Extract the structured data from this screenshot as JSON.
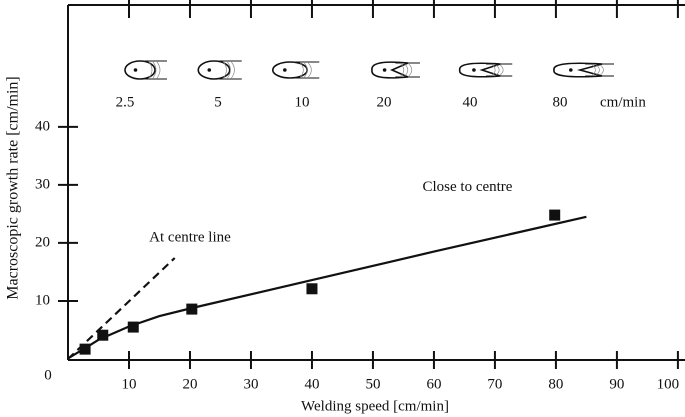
{
  "chart_data": {
    "type": "scatter",
    "xlabel": "Welding speed [cm/min]",
    "ylabel": "Macroscopic growth rate [cm/min]",
    "xlim": [
      0,
      101
    ],
    "ylim": [
      0,
      61
    ],
    "xticks": [
      10,
      20,
      30,
      40,
      50,
      60,
      70,
      80,
      90,
      100
    ],
    "yticks": [
      0,
      10,
      20,
      30,
      40
    ],
    "series": [
      {
        "x": [
          2.8,
          5.7,
          10.7,
          20.3,
          40,
          79.8
        ],
        "values": [
          1.7,
          4.1,
          5.5,
          8.6,
          12.1,
          24.8
        ],
        "color": "#111111",
        "marker": "square"
      },
      {
        "x": [
          0.3,
          3,
          5,
          10,
          15,
          20,
          40,
          60,
          85
        ],
        "values": [
          0.3,
          2,
          3.3,
          5.6,
          7.4,
          8.7,
          13.6,
          18.5,
          24.5
        ],
        "color": "#111111",
        "style": "solid"
      },
      {
        "x": [
          0,
          17.5
        ],
        "values": [
          0,
          17.4
        ],
        "color": "#111111",
        "style": "dashed"
      }
    ],
    "annotations": [
      {
        "text": "At centre line",
        "x": 20,
        "y": 20.8
      },
      {
        "text": "Close to centre",
        "x": 65.5,
        "y": 29.5
      }
    ],
    "top_labels": [
      "2.5",
      "5",
      "10",
      "20",
      "40",
      "80"
    ],
    "top_unit": "cm/min"
  }
}
